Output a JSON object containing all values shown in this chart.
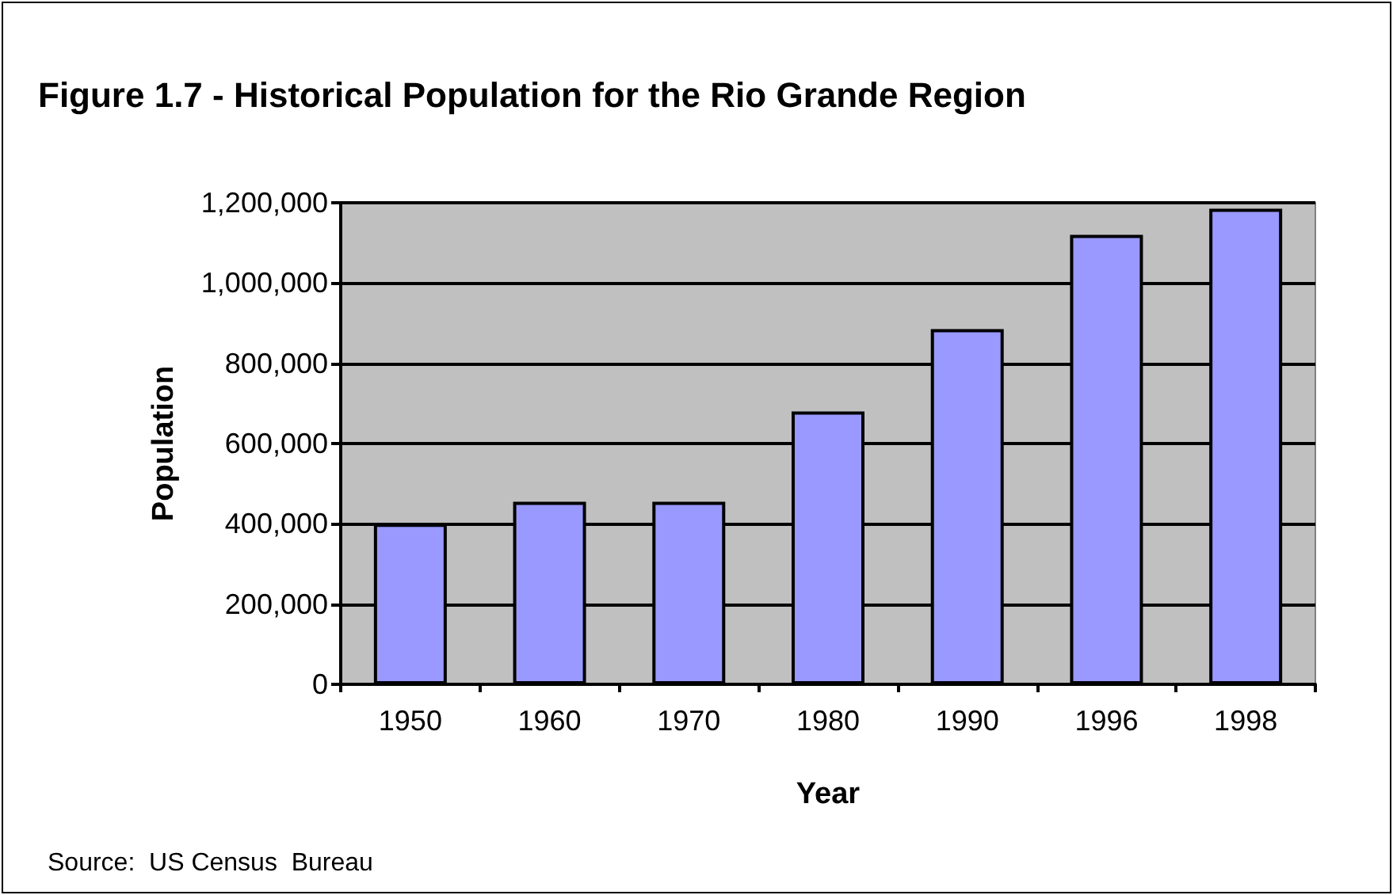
{
  "chart_data": {
    "type": "bar",
    "title": "Figure 1.7 - Historical Population for the Rio Grande Region",
    "xlabel": "Year",
    "ylabel": "Population",
    "annotations": [
      "Source:  US Census  Bureau"
    ],
    "categories": [
      "1950",
      "1960",
      "1970",
      "1980",
      "1990",
      "1996",
      "1998"
    ],
    "values": [
      400000,
      455000,
      455000,
      680000,
      885000,
      1120000,
      1185000
    ],
    "color": "#9999ff",
    "ylim": [
      0,
      1200000
    ],
    "yticks": [
      0,
      {
        "value": 200000,
        "label": "200,000"
      },
      {
        "value": 400000,
        "label": "400,000"
      },
      {
        "value": 600000,
        "label": "600,000"
      },
      {
        "value": 800000,
        "label": "800,000"
      },
      {
        "value": 1000000,
        "label": "1,000,000"
      },
      {
        "value": 1200000,
        "label": "1,200,000"
      }
    ],
    "grid": "y"
  }
}
